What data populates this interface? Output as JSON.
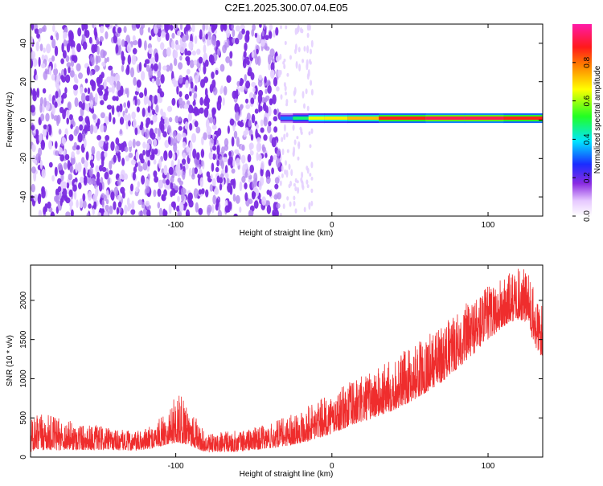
{
  "figure_title": "C2E1.2025.300.07.04.E05",
  "colors": {
    "snr_line": "#ee2222",
    "noise_dot": "#7a2be0",
    "axis": "#000000"
  },
  "chart_data": [
    {
      "type": "heatmap",
      "name": "spectrogram",
      "xlabel": "Height of straight line (km)",
      "ylabel": "Frequency (Hz)",
      "xlim": [
        -193,
        135
      ],
      "ylim": [
        -50,
        50
      ],
      "xticks": [
        -100,
        0,
        100
      ],
      "yticks": [
        -40,
        -20,
        0,
        20,
        40
      ],
      "grid": false,
      "noise_region_x": [
        -193,
        -33
      ],
      "signal_band": {
        "x_start": -33,
        "x_end": 135,
        "frequency_center": 1,
        "segments": [
          {
            "x": -33,
            "amp": 0.25
          },
          {
            "x": -25,
            "amp": 0.4
          },
          {
            "x": -15,
            "amp": 0.55
          },
          {
            "x": -5,
            "amp": 0.75
          },
          {
            "x": 10,
            "amp": 0.6
          },
          {
            "x": 30,
            "amp": 0.85
          },
          {
            "x": 60,
            "amp": 0.9
          },
          {
            "x": 85,
            "amp": 0.95
          },
          {
            "x": 110,
            "amp": 0.9
          },
          {
            "x": 135,
            "amp": 0.85
          }
        ]
      },
      "colorbar": {
        "label": "Normalized spectral amplitude",
        "range": [
          0,
          1
        ],
        "ticks": [
          "0.0",
          "0.2",
          "0.4",
          "0.6",
          "0.8"
        ],
        "colormap": "rainbow (white-purple-blue-cyan-green-yellow-red-magenta)"
      }
    },
    {
      "type": "line",
      "name": "snr",
      "xlabel": "Height of straight line (km)",
      "ylabel": "SNR (10 * v/v)",
      "xlim": [
        -193,
        135
      ],
      "ylim": [
        0,
        2450
      ],
      "xticks": [
        -100,
        0,
        100
      ],
      "yticks": [
        0,
        500,
        1000,
        1500,
        2000
      ],
      "grid": false,
      "series": [
        {
          "name": "",
          "envelope": {
            "x": [
              -193,
              -185,
              -175,
              -160,
              -140,
              -125,
              -115,
              -105,
              -100,
              -95,
              -90,
              -85,
              -80,
              -70,
              -60,
              -50,
              -40,
              -30,
              -20,
              -10,
              0,
              10,
              20,
              30,
              40,
              50,
              60,
              70,
              80,
              90,
              100,
              110,
              118,
              125,
              130,
              135
            ],
            "low": [
              60,
              90,
              90,
              90,
              90,
              80,
              110,
              160,
              180,
              170,
              140,
              90,
              60,
              60,
              70,
              90,
              110,
              140,
              180,
              230,
              300,
              380,
              450,
              520,
              600,
              700,
              820,
              950,
              1120,
              1300,
              1500,
              1650,
              1760,
              1720,
              1400,
              1250
            ],
            "high": [
              500,
              560,
              500,
              440,
              360,
              330,
              400,
              600,
              800,
              780,
              640,
              420,
              280,
              330,
              340,
              380,
              420,
              520,
              620,
              720,
              800,
              950,
              1050,
              1150,
              1280,
              1400,
              1550,
              1680,
              1850,
              2050,
              2200,
              2300,
              2420,
              2400,
              2100,
              1950
            ]
          }
        }
      ]
    }
  ]
}
